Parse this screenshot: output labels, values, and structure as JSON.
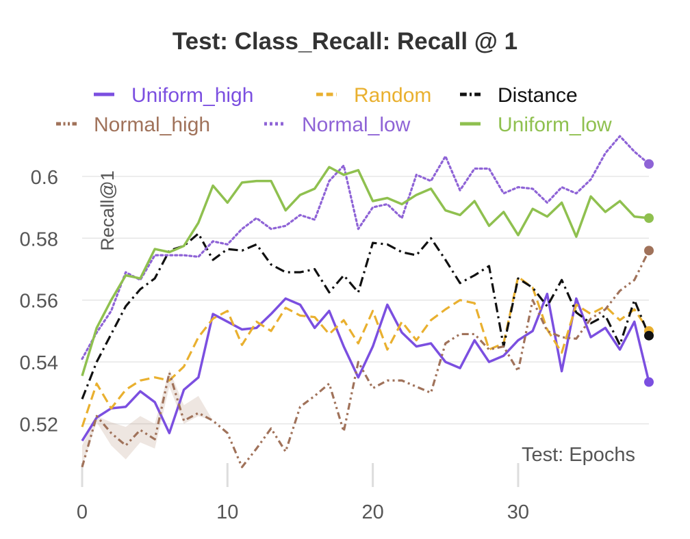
{
  "chart_data": {
    "type": "line",
    "title": "Test: Class_Recall: Recall @ 1",
    "xlabel": "Test: Epochs",
    "ylabel": "Recall@1",
    "xlim": [
      0,
      39
    ],
    "ylim": [
      0.5,
      0.615
    ],
    "xticks": [
      0,
      10,
      20,
      30
    ],
    "xtick_labels": [
      "0",
      "10",
      "20",
      "30"
    ],
    "yticks": [
      0.52,
      0.54,
      0.56,
      0.58,
      0.6
    ],
    "ytick_labels": [
      "0.52",
      "0.54",
      "0.56",
      "0.58",
      "0.6"
    ],
    "grid": "horizontal",
    "legend_position": "top",
    "x": [
      0,
      1,
      2,
      3,
      4,
      5,
      6,
      7,
      8,
      9,
      10,
      11,
      12,
      13,
      14,
      15,
      16,
      17,
      18,
      19,
      20,
      21,
      22,
      23,
      24,
      25,
      26,
      27,
      28,
      29,
      30,
      31,
      32,
      33,
      34,
      35,
      36,
      37,
      38,
      39
    ],
    "series": [
      {
        "name": "Uniform_high",
        "color": "#7b4fe0",
        "dash": "solid",
        "values": [
          0.5145,
          0.522,
          0.525,
          0.5255,
          0.5305,
          0.527,
          0.517,
          0.531,
          0.535,
          0.5555,
          0.553,
          0.5505,
          0.551,
          0.5555,
          0.5605,
          0.5585,
          0.551,
          0.5565,
          0.545,
          0.535,
          0.545,
          0.5585,
          0.5495,
          0.545,
          0.546,
          0.54,
          0.538,
          0.547,
          0.54,
          0.542,
          0.547,
          0.55,
          0.562,
          0.537,
          0.5605,
          0.548,
          0.551,
          0.544,
          0.553,
          0.5335
        ]
      },
      {
        "name": "Random",
        "color": "#e9b02f",
        "dash": "dashed",
        "values": [
          0.519,
          0.533,
          0.525,
          0.531,
          0.534,
          0.535,
          0.534,
          0.5385,
          0.548,
          0.554,
          0.5565,
          0.5455,
          0.553,
          0.55,
          0.5575,
          0.555,
          0.5545,
          0.549,
          0.5535,
          0.546,
          0.5565,
          0.544,
          0.553,
          0.547,
          0.5535,
          0.557,
          0.56,
          0.559,
          0.544,
          0.546,
          0.5675,
          0.564,
          0.5505,
          0.543,
          0.5585,
          0.5555,
          0.558,
          0.5535,
          0.557,
          0.55
        ]
      },
      {
        "name": "Distance",
        "color": "#111111",
        "dash": "dashdot",
        "values": [
          0.528,
          0.54,
          0.549,
          0.558,
          0.5635,
          0.567,
          0.576,
          0.5775,
          0.5815,
          0.573,
          0.5765,
          0.576,
          0.578,
          0.5715,
          0.569,
          0.569,
          0.57,
          0.5625,
          0.568,
          0.5625,
          0.5785,
          0.578,
          0.5755,
          0.5745,
          0.58,
          0.573,
          0.5655,
          0.568,
          0.571,
          0.545,
          0.567,
          0.564,
          0.558,
          0.5665,
          0.556,
          0.5525,
          0.555,
          0.5455,
          0.56,
          0.5485
        ]
      },
      {
        "name": "Normal_high",
        "color": "#a0725a",
        "dash": "dashdotdot",
        "values": [
          0.506,
          0.5225,
          0.517,
          0.513,
          0.518,
          0.515,
          0.5365,
          0.521,
          0.5235,
          0.521,
          0.517,
          0.506,
          0.512,
          0.5185,
          0.511,
          0.5255,
          0.529,
          0.533,
          0.5175,
          0.54,
          0.5315,
          0.534,
          0.534,
          0.532,
          0.53,
          0.546,
          0.549,
          0.549,
          0.544,
          0.545,
          0.537,
          0.56,
          0.55,
          0.548,
          0.5475,
          0.554,
          0.557,
          0.563,
          0.5665,
          0.576
        ]
      },
      {
        "name": "Normal_low",
        "color": "#8e63d6",
        "dash": "dotted",
        "values": [
          0.541,
          0.5495,
          0.5565,
          0.569,
          0.5665,
          0.5745,
          0.5745,
          0.5745,
          0.574,
          0.579,
          0.578,
          0.583,
          0.5865,
          0.583,
          0.584,
          0.5875,
          0.586,
          0.5985,
          0.6035,
          0.583,
          0.59,
          0.591,
          0.5865,
          0.6005,
          0.5985,
          0.6065,
          0.5955,
          0.6025,
          0.6025,
          0.5945,
          0.5965,
          0.596,
          0.5915,
          0.5965,
          0.5945,
          0.599,
          0.6075,
          0.613,
          0.608,
          0.604
        ]
      },
      {
        "name": "Uniform_low",
        "color": "#8fc04f",
        "dash": "solid",
        "values": [
          0.5355,
          0.551,
          0.56,
          0.568,
          0.567,
          0.5765,
          0.5755,
          0.5775,
          0.585,
          0.597,
          0.5915,
          0.598,
          0.5985,
          0.5985,
          0.589,
          0.594,
          0.596,
          0.603,
          0.6005,
          0.602,
          0.592,
          0.593,
          0.591,
          0.594,
          0.596,
          0.589,
          0.5875,
          0.592,
          0.584,
          0.5885,
          0.581,
          0.5895,
          0.587,
          0.5915,
          0.5805,
          0.5935,
          0.5885,
          0.592,
          0.587,
          0.5865
        ]
      }
    ],
    "band": {
      "series": "Normal_high",
      "upper": [
        0.513,
        0.5225,
        0.5205,
        0.519,
        0.5225,
        0.52,
        0.5375,
        0.526,
        0.529,
        0.521
      ],
      "lower": [
        0.506,
        0.5205,
        0.513,
        0.5085,
        0.514,
        0.512,
        0.532,
        0.52,
        0.5225,
        0.521
      ]
    }
  }
}
